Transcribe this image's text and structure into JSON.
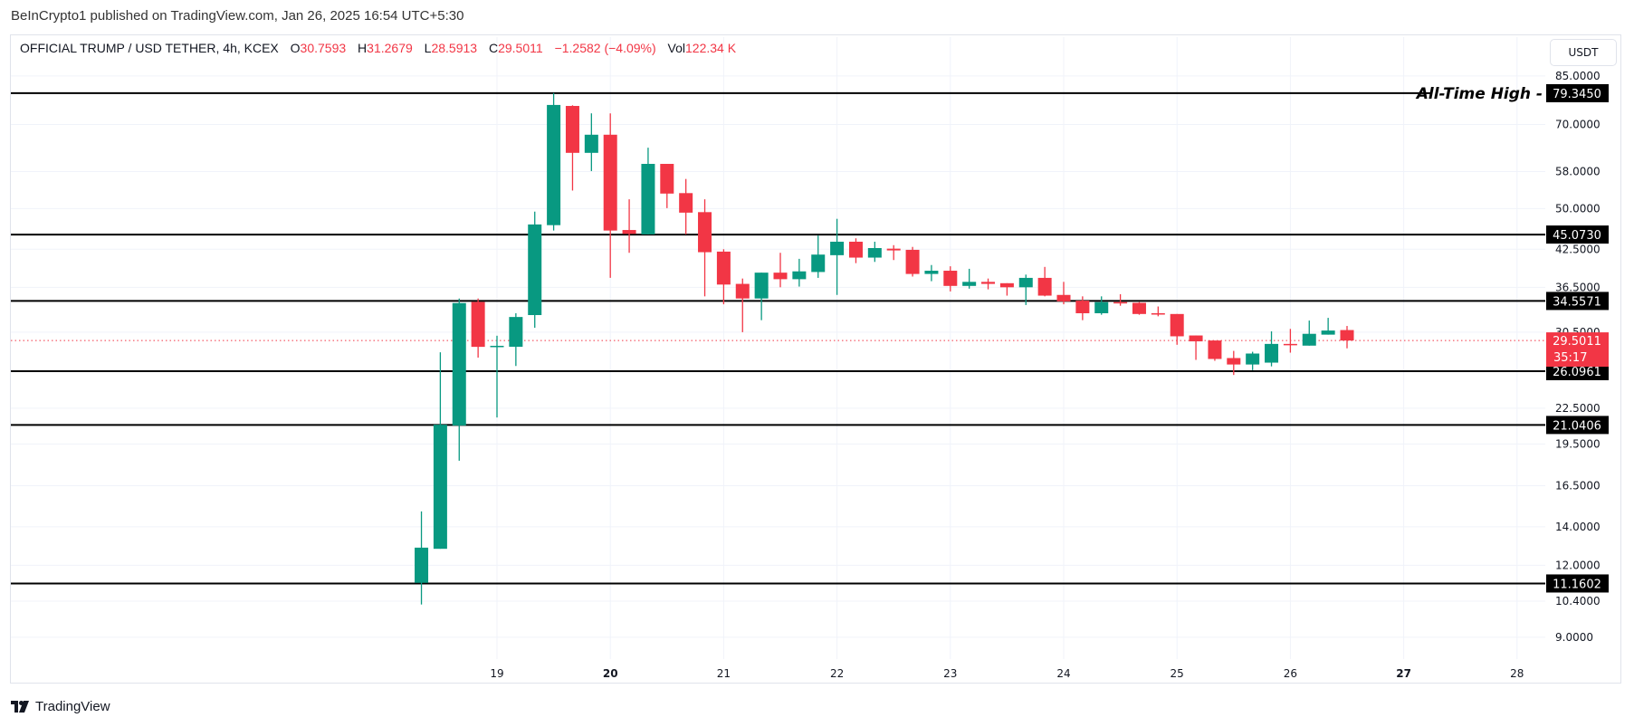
{
  "publish_line": "BeInCrypto1 published on TradingView.com, Jan 26, 2025 16:54 UTC+5:30",
  "legend": {
    "symbol": "OFFICIAL TRUMP / USD TETHER, 4h, KCEX",
    "o_label": "O",
    "o": "30.7593",
    "h_label": "H",
    "h": "31.2679",
    "l_label": "L",
    "l": "28.5913",
    "c_label": "C",
    "c": "29.5011",
    "change": "−1.2582 (−4.09%)",
    "vol_label": "Vol",
    "vol": "122.34 K"
  },
  "currency_button": "USDT",
  "brand": "TradingView",
  "colors": {
    "up": "#089981",
    "down": "#f23645",
    "level": "#000000",
    "grid": "#f0f3fa"
  },
  "chart_data": {
    "type": "candlestick",
    "title": "OFFICIAL TRUMP / USD TETHER, 4h, KCEX",
    "yscale": "log",
    "ylim": [
      8.04,
      99.3
    ],
    "xlim_hours_from_day19": [
      -124,
      244
    ],
    "x_ticks": [
      {
        "label": "19",
        "hours": 0,
        "bold": false
      },
      {
        "label": "20",
        "hours": 24,
        "bold": true
      },
      {
        "label": "21",
        "hours": 48,
        "bold": false
      },
      {
        "label": "22",
        "hours": 72,
        "bold": false
      },
      {
        "label": "23",
        "hours": 96,
        "bold": false
      },
      {
        "label": "24",
        "hours": 120,
        "bold": false
      },
      {
        "label": "25",
        "hours": 144,
        "bold": false
      },
      {
        "label": "26",
        "hours": 168,
        "bold": false
      },
      {
        "label": "27",
        "hours": 192,
        "bold": true
      },
      {
        "label": "28",
        "hours": 216,
        "bold": false
      }
    ],
    "y_ticks": [
      "85.0000",
      "70.0000",
      "58.0000",
      "50.0000",
      "42.5000",
      "36.5000",
      "30.5000",
      "22.5000",
      "19.5000",
      "16.5000",
      "14.0000",
      "12.0000",
      "10.4000",
      "9.0000"
    ],
    "candle_columns": [
      "hours_from_day19",
      "open",
      "high",
      "low",
      "close"
    ],
    "candles": [
      [
        -16,
        11.19,
        14.89,
        10.26,
        12.88
      ],
      [
        -12,
        12.82,
        28.14,
        12.82,
        21.06
      ],
      [
        -8,
        21.0,
        34.9,
        18.24,
        34.27
      ],
      [
        -4,
        34.42,
        34.9,
        27.55,
        28.76
      ],
      [
        0,
        28.76,
        30.07,
        21.68,
        28.88
      ],
      [
        4,
        28.77,
        32.9,
        26.64,
        32.41
      ],
      [
        8,
        32.66,
        49.4,
        31.05,
        46.93
      ],
      [
        12,
        46.8,
        79.4,
        45.8,
        75.7
      ],
      [
        16,
        75.4,
        75.6,
        53.75,
        62.5
      ],
      [
        20,
        62.5,
        73.2,
        58.1,
        67.2
      ],
      [
        24,
        67.2,
        73.2,
        37.9,
        45.8
      ],
      [
        28,
        45.9,
        51.9,
        41.9,
        45.2
      ],
      [
        32,
        45.1,
        63.8,
        45.1,
        59.8
      ],
      [
        36,
        59.8,
        59.8,
        50.1,
        53.1
      ],
      [
        40,
        53.2,
        56.3,
        45.1,
        49.2
      ],
      [
        44,
        49.3,
        51.9,
        35.2,
        42.0
      ],
      [
        48,
        42.1,
        42.5,
        34.1,
        36.9
      ],
      [
        52,
        37.0,
        37.8,
        30.5,
        34.9
      ],
      [
        56,
        34.9,
        38.7,
        32.0,
        38.7
      ],
      [
        60,
        38.7,
        41.9,
        36.5,
        37.7
      ],
      [
        64,
        37.7,
        40.9,
        36.6,
        38.9
      ],
      [
        68,
        38.8,
        44.9,
        37.9,
        41.6
      ],
      [
        72,
        41.5,
        48.0,
        35.4,
        43.8
      ],
      [
        76,
        43.8,
        44.4,
        40.2,
        41.1
      ],
      [
        80,
        41.1,
        43.8,
        40.4,
        42.7
      ],
      [
        84,
        42.6,
        43.2,
        40.7,
        42.3
      ],
      [
        88,
        42.4,
        42.9,
        38.1,
        38.5
      ],
      [
        92,
        38.5,
        39.9,
        37.4,
        39.0
      ],
      [
        96,
        39.0,
        39.7,
        35.9,
        36.7
      ],
      [
        100,
        36.7,
        39.3,
        36.3,
        37.3
      ],
      [
        104,
        37.3,
        37.8,
        36.2,
        37.0
      ],
      [
        108,
        37.1,
        37.1,
        35.3,
        36.5
      ],
      [
        112,
        36.5,
        38.4,
        34.0,
        37.9
      ],
      [
        116,
        37.9,
        39.6,
        35.2,
        35.3
      ],
      [
        120,
        35.4,
        37.3,
        34.1,
        34.5
      ],
      [
        124,
        34.6,
        35.2,
        32.0,
        32.9
      ],
      [
        128,
        32.9,
        35.2,
        32.7,
        34.4
      ],
      [
        132,
        34.4,
        35.5,
        33.9,
        34.3
      ],
      [
        136,
        34.3,
        34.4,
        32.7,
        32.8
      ],
      [
        140,
        32.9,
        33.8,
        32.5,
        32.8
      ],
      [
        144,
        32.8,
        32.8,
        29.0,
        30.0
      ],
      [
        148,
        30.1,
        30.1,
        27.3,
        29.4
      ],
      [
        152,
        29.5,
        29.5,
        27.2,
        27.4
      ],
      [
        156,
        27.5,
        28.3,
        25.7,
        26.8
      ],
      [
        160,
        26.8,
        28.2,
        26.2,
        28.0
      ],
      [
        164,
        27.0,
        30.6,
        26.6,
        29.1
      ],
      [
        168,
        29.1,
        30.9,
        28.1,
        29.05
      ],
      [
        172,
        28.9,
        31.95,
        28.9,
        30.3
      ],
      [
        176,
        30.2,
        32.3,
        30.2,
        30.7
      ],
      [
        180,
        30.7593,
        31.2679,
        28.5913,
        29.5011
      ]
    ],
    "levels": [
      {
        "value": 79.345,
        "label": "79.3450",
        "annotation": "All-Time High -"
      },
      {
        "value": 45.073,
        "label": "45.0730"
      },
      {
        "value": 34.5571,
        "label": "34.5571"
      },
      {
        "value": 26.0961,
        "label": "26.0961"
      },
      {
        "value": 21.0406,
        "label": "21.0406"
      },
      {
        "value": 11.1602,
        "label": "11.1602"
      }
    ],
    "last_price": {
      "value": 29.5011,
      "label": "29.5011",
      "countdown": "35:17"
    }
  }
}
